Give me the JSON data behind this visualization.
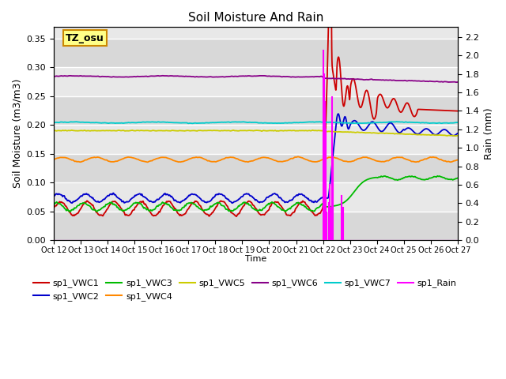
{
  "title": "Soil Moisture And Rain",
  "xlabel": "Time",
  "ylabel_left": "Soil Moisture (m3/m3)",
  "ylabel_right": "Rain (mm)",
  "xlim": [
    0,
    375
  ],
  "ylim_left": [
    0.0,
    0.37
  ],
  "ylim_right": [
    0.0,
    2.31
  ],
  "xtick_labels": [
    "Oct 12",
    "Oct 13",
    "Oct 14",
    "Oct 15",
    "Oct 16",
    "Oct 17",
    "Oct 18",
    "Oct 19",
    "Oct 20",
    "Oct 21",
    "Oct 22",
    "Oct 23",
    "Oct 24",
    "Oct 25",
    "Oct 26",
    "Oct 27"
  ],
  "annotation_text": "TZ_osu",
  "annotation_box_facecolor": "#ffff88",
  "annotation_box_edgecolor": "#cc8800",
  "bg_color": "#e0e0e0",
  "bg_band_color": "#cccccc",
  "colors": {
    "VWC1": "#cc0000",
    "VWC2": "#0000cc",
    "VWC3": "#00bb00",
    "VWC4": "#ff8800",
    "VWC5": "#cccc00",
    "VWC6": "#880088",
    "VWC7": "#00cccc",
    "Rain": "#ff00ff"
  },
  "legend_rows": [
    [
      {
        "label": "sp1_VWC1",
        "color": "#cc0000"
      },
      {
        "label": "sp1_VWC2",
        "color": "#0000cc"
      },
      {
        "label": "sp1_VWC3",
        "color": "#00bb00"
      },
      {
        "label": "sp1_VWC4",
        "color": "#ff8800"
      },
      {
        "label": "sp1_VWC5",
        "color": "#cccc00"
      },
      {
        "label": "sp1_VWC6",
        "color": "#880088"
      }
    ],
    [
      {
        "label": "sp1_VWC7",
        "color": "#00cccc"
      },
      {
        "label": "sp1_Rain",
        "color": "#ff00ff"
      }
    ]
  ]
}
